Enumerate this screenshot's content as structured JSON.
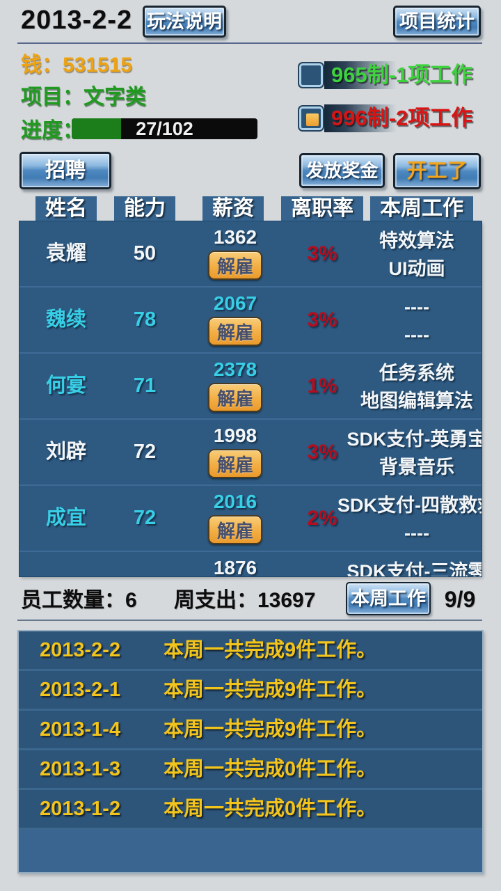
{
  "colors": {
    "panel_blue": "#2e5a82",
    "highlight_cyan": "#38cfe6",
    "rate_red": "#b30e1f",
    "log_yellow": "#f2c41c",
    "money_orange": "#eda313",
    "label_green": "#1f9a1f",
    "progress_green": "#1b7e1b",
    "start_button_orange": "#f2a41c"
  },
  "header": {
    "date": "2013-2-2",
    "help_button": "玩法说明",
    "stats_button": "项目统计"
  },
  "status": {
    "money_label": "钱：",
    "money_value": "531515",
    "project_label": "项目：",
    "project_value": "文字类",
    "progress_label": "进度：",
    "progress_text": "27/102",
    "progress_percent": 26.5,
    "schedules": [
      {
        "label": "965制-1项工作",
        "checked": false,
        "color": "#3ed23e"
      },
      {
        "label": "996制-2项工作",
        "checked": true,
        "color": "#d81414"
      }
    ]
  },
  "actions": {
    "recruit": "招聘",
    "bonus": "发放奖金",
    "start": "开工了"
  },
  "table": {
    "headers": [
      "姓名",
      "能力",
      "薪资",
      "离职率",
      "本周工作"
    ],
    "fire_label": "解雇",
    "rows": [
      {
        "name": "袁耀",
        "ability": "50",
        "salary": "1362",
        "rate": "3%",
        "work1": "特效算法",
        "work2": "UI动画",
        "highlight": false
      },
      {
        "name": "魏续",
        "ability": "78",
        "salary": "2067",
        "rate": "3%",
        "work1": "----",
        "work2": "----",
        "highlight": true
      },
      {
        "name": "何宴",
        "ability": "71",
        "salary": "2378",
        "rate": "1%",
        "work1": "任务系统",
        "work2": "地图编辑算法",
        "highlight": true
      },
      {
        "name": "刘辟",
        "ability": "72",
        "salary": "1998",
        "rate": "3%",
        "work1": "SDK支付-英勇宝",
        "work2": "背景音乐",
        "highlight": false
      },
      {
        "name": "成宜",
        "ability": "72",
        "salary": "2016",
        "rate": "2%",
        "work1": "SDK支付-四散救救",
        "work2": "----",
        "highlight": true
      },
      {
        "name": "",
        "ability": "",
        "salary": "1876",
        "rate": "",
        "work1": "SDK支付-三流零",
        "work2": "",
        "highlight": false
      }
    ]
  },
  "summary": {
    "employee_label": "员工数量：",
    "employee_count": "6",
    "expense_label": "周支出：",
    "expense_value": "13697",
    "week_button": "本周工作",
    "week_ratio": "9/9"
  },
  "log": {
    "entries": [
      {
        "date": "2013-2-2",
        "text": "本周一共完成9件工作。"
      },
      {
        "date": "2013-2-1",
        "text": "本周一共完成9件工作。"
      },
      {
        "date": "2013-1-4",
        "text": "本周一共完成9件工作。"
      },
      {
        "date": "2013-1-3",
        "text": "本周一共完成0件工作。"
      },
      {
        "date": "2013-1-2",
        "text": "本周一共完成0件工作。"
      }
    ]
  }
}
